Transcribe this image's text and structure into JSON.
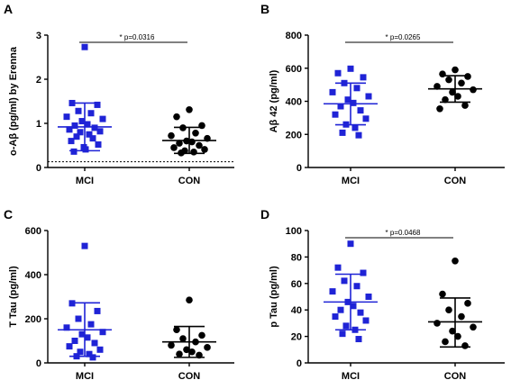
{
  "chart_data": [
    {
      "panel": "A",
      "type": "scatter",
      "ylabel": "o-Aβ (pg/ml) by Erenna",
      "categories": [
        "MCI",
        "CON"
      ],
      "ylim": [
        0,
        3
      ],
      "yticks": [
        "0",
        "1",
        "2",
        "3"
      ],
      "threshold": 0.13,
      "series": [
        {
          "category": "MCI",
          "marker": "square",
          "color": "#1f23d6",
          "mean": 0.92,
          "sd_low": 0.38,
          "sd_high": 1.46,
          "values": [
            2.73,
            1.46,
            1.42,
            1.28,
            1.23,
            1.15,
            1.1,
            1.05,
            0.98,
            0.95,
            0.9,
            0.86,
            0.82,
            0.8,
            0.75,
            0.7,
            0.66,
            0.6,
            0.52,
            0.46,
            0.41,
            0.36
          ]
        },
        {
          "category": "CON",
          "marker": "circle",
          "color": "#000000",
          "mean": 0.61,
          "sd_low": 0.32,
          "sd_high": 0.91,
          "values": [
            1.31,
            1.15,
            0.95,
            0.9,
            0.78,
            0.72,
            0.66,
            0.6,
            0.58,
            0.55,
            0.5,
            0.45,
            0.41,
            0.38,
            0.35,
            0.33
          ]
        }
      ],
      "annotation": "* p=0.0316"
    },
    {
      "panel": "B",
      "type": "scatter",
      "ylabel": "Aβ 42 (pg/ml)",
      "categories": [
        "MCI",
        "CON"
      ],
      "ylim": [
        0,
        800
      ],
      "yticks": [
        "0",
        "200",
        "400",
        "600",
        "800"
      ],
      "series": [
        {
          "category": "MCI",
          "marker": "square",
          "color": "#1f23d6",
          "mean": 385,
          "sd_low": 258,
          "sd_high": 510,
          "values": [
            597,
            570,
            545,
            510,
            480,
            455,
            430,
            410,
            390,
            370,
            345,
            320,
            295,
            260,
            240,
            210,
            195
          ]
        },
        {
          "category": "CON",
          "marker": "circle",
          "color": "#000000",
          "mean": 475,
          "sd_low": 395,
          "sd_high": 555,
          "values": [
            590,
            565,
            550,
            530,
            510,
            490,
            470,
            455,
            430,
            410,
            375,
            355
          ]
        }
      ],
      "annotation": "* p=0.0265"
    },
    {
      "panel": "C",
      "type": "scatter",
      "ylabel": "T Tau (pg/ml)",
      "categories": [
        "MCI",
        "CON"
      ],
      "ylim": [
        0,
        600
      ],
      "yticks": [
        "0",
        "200",
        "400",
        "600"
      ],
      "series": [
        {
          "category": "MCI",
          "marker": "square",
          "color": "#1f23d6",
          "mean": 150,
          "sd_low": 30,
          "sd_high": 272,
          "values": [
            530,
            270,
            235,
            200,
            175,
            160,
            140,
            130,
            115,
            100,
            90,
            75,
            60,
            50,
            40,
            30,
            25
          ]
        },
        {
          "category": "CON",
          "marker": "circle",
          "color": "#000000",
          "mean": 95,
          "sd_low": 25,
          "sd_high": 165,
          "values": [
            285,
            150,
            125,
            110,
            95,
            80,
            70,
            60,
            50,
            40,
            35
          ]
        }
      ]
    },
    {
      "panel": "D",
      "type": "scatter",
      "ylabel": "p Tau (pg/ml)",
      "categories": [
        "MCI",
        "CON"
      ],
      "ylim": [
        0,
        100
      ],
      "yticks": [
        "0",
        "20",
        "40",
        "60",
        "80",
        "100"
      ],
      "series": [
        {
          "category": "MCI",
          "marker": "square",
          "color": "#1f23d6",
          "mean": 46,
          "sd_low": 25,
          "sd_high": 67,
          "values": [
            90,
            72,
            68,
            62,
            58,
            54,
            50,
            46,
            43,
            40,
            38,
            35,
            32,
            28,
            25,
            22,
            18
          ]
        },
        {
          "category": "CON",
          "marker": "circle",
          "color": "#000000",
          "mean": 31,
          "sd_low": 12,
          "sd_high": 49,
          "values": [
            77,
            52,
            45,
            40,
            35,
            30,
            27,
            24,
            20,
            16,
            13
          ]
        }
      ],
      "annotation": "* p=0.0468"
    }
  ]
}
